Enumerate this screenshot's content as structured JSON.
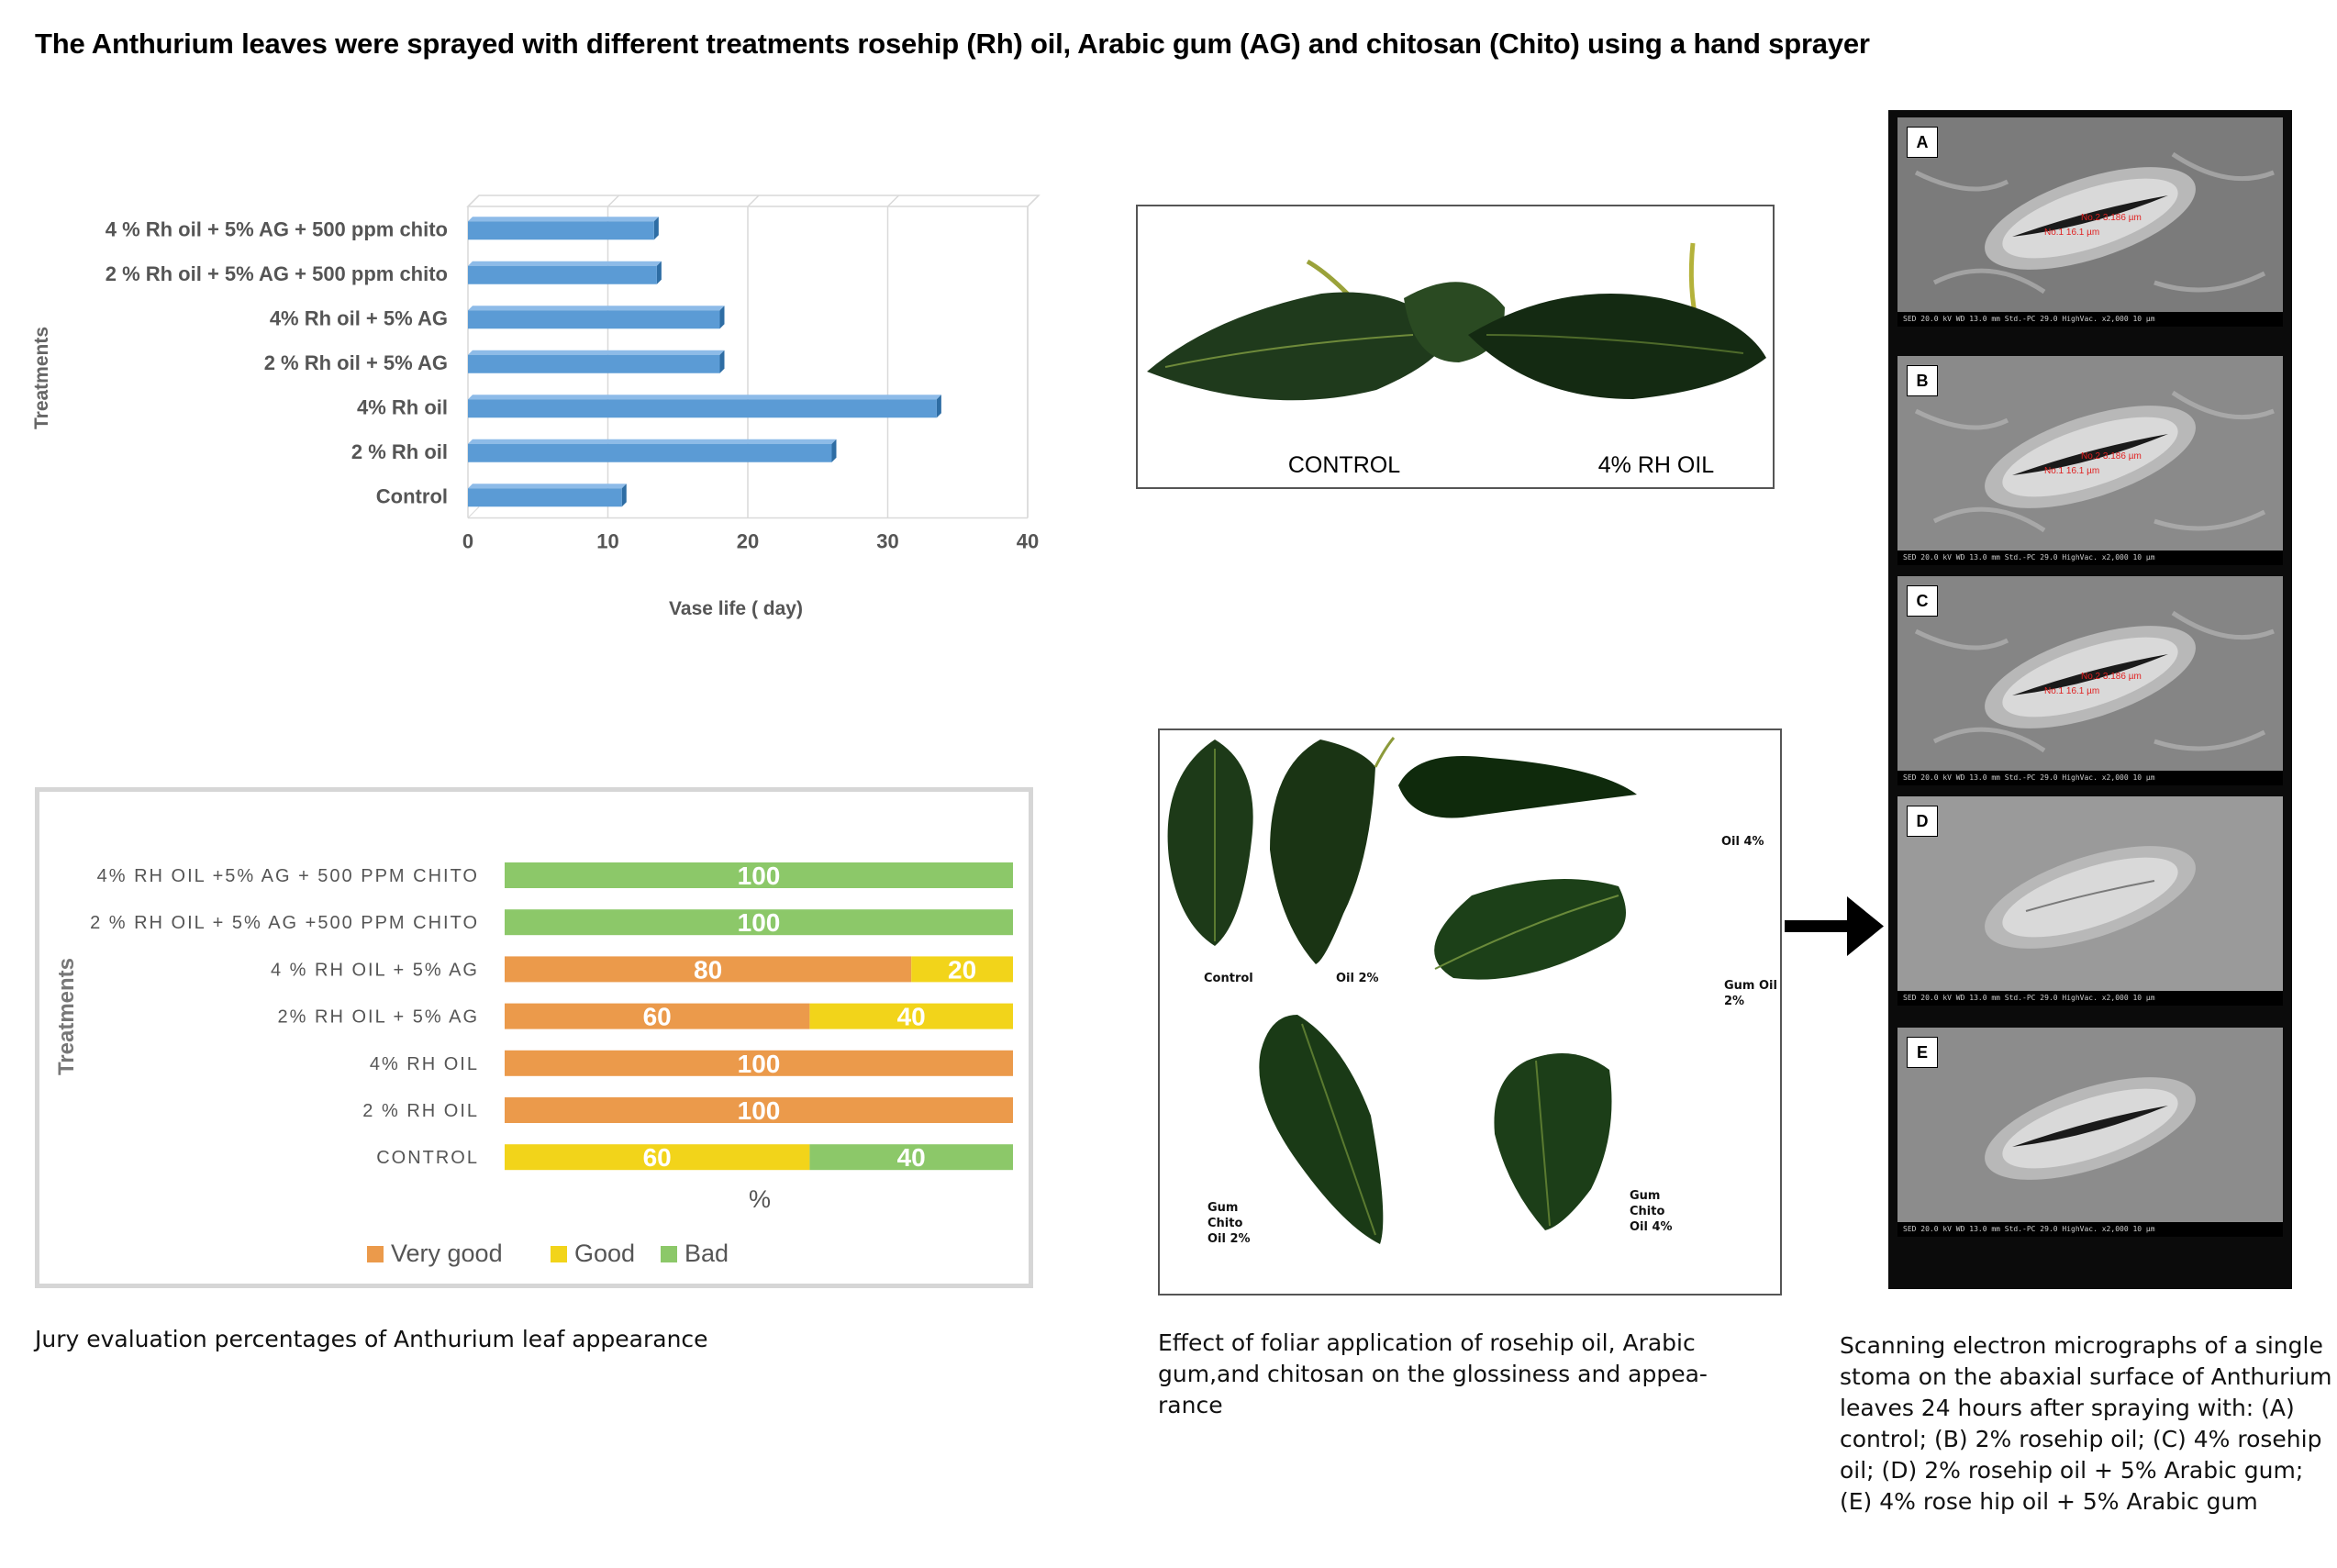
{
  "title": "The Anthurium leaves were sprayed with different treatments rosehip (Rh) oil, Arabic gum (AG) and chitosan (Chito) using a hand sprayer",
  "chart_data": [
    {
      "type": "bar",
      "orientation": "horizontal",
      "categories": [
        "Control",
        "2 %  Rh oil",
        "4%   Rh oil",
        "2 % Rh oil  + 5% AG",
        "4%  Rh oil  + 5% AG",
        "2 %  Rh oil + 5% AG + 500 ppm chito",
        "4 %  Rh oil + 5% AG + 500 ppm chito"
      ],
      "values": [
        11,
        26,
        33.5,
        18,
        18,
        13.5,
        13.3
      ],
      "xlabel": "Vase life  ( day)",
      "ylabel": "Treatments",
      "xlim": [
        0,
        40
      ],
      "xticks": [
        0,
        10,
        20,
        30,
        40
      ],
      "grid": true,
      "colors": {
        "bar": "#5b9bd5",
        "bar_dark": "#2e6da4",
        "bar_top": "#8dbbe8",
        "grid": "#d9d9d9"
      }
    },
    {
      "type": "bar",
      "orientation": "horizontal",
      "stacked": true,
      "categories": [
        "CONTROL",
        "2 % RH OIL",
        "4% RH OIL",
        "2% RH OIL +  5% AG",
        "4 % RH OIL + 5% AG",
        "2 % RH OIL + 5% AG +500 PPM CHITO",
        "4% RH OIL +5% AG + 500 PPM  CHITO"
      ],
      "series": [
        {
          "name": "Very good",
          "color": "#eb9a4b",
          "values": [
            0,
            100,
            100,
            60,
            80,
            0,
            0
          ]
        },
        {
          "name": "Good",
          "color": "#f2d41a",
          "values": [
            60,
            0,
            0,
            40,
            20,
            0,
            0
          ]
        },
        {
          "name": "Bad",
          "color": "#8cc869",
          "values": [
            40,
            0,
            0,
            0,
            0,
            100,
            100
          ]
        }
      ],
      "segment_order": [
        [
          "Good",
          "Bad"
        ],
        [
          "Very good"
        ],
        [
          "Very good"
        ],
        [
          "Very good",
          "Good"
        ],
        [
          "Very good",
          "Good"
        ],
        [
          "Bad"
        ],
        [
          "Bad"
        ]
      ],
      "xlabel": "%",
      "ylabel": "Treatments",
      "xlim": [
        0,
        100
      ],
      "legend": "bottom",
      "caption": "Jury evaluation percentages of Anthurium leaf appearance"
    }
  ],
  "photo_top": {
    "labels": [
      "CONTROL",
      "4% RH OIL"
    ]
  },
  "photo_grid": {
    "labels": [
      "Control",
      "Oil 2%",
      "Oil 4%",
      "Gum Oil 2%",
      "Gum Chito Oil 2%",
      "Gum Chito Oil 4%"
    ],
    "caption": "Effect of foliar application of rosehip oil, Arabic gum,and chitosan on the glossiness and appea-rance"
  },
  "sem": {
    "panels": [
      "A",
      "B",
      "C",
      "D",
      "E"
    ],
    "info_bar": "SED   20.0 kV   WD 13.0 mm   Std.-PC 29.0   HighVac.   x2,000          10 µm",
    "measurements": [
      "No.1  16.1 µm",
      "No.2  3.186 µm"
    ],
    "caption": "Scanning electron micrographs of a single stoma on the abaxial surface of Anthurium leaves 24 hours after spraying with: (A) control; (B) 2% rosehip oil; (C) 4% rosehip oil; (D) 2% rosehip oil + 5% Arabic gum; (E) 4% rose hip oil + 5% Arabic gum"
  }
}
